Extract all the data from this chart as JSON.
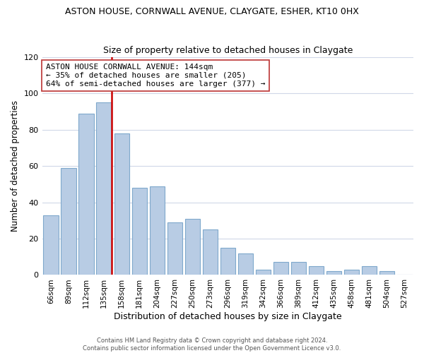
{
  "title": "ASTON HOUSE, CORNWALL AVENUE, CLAYGATE, ESHER, KT10 0HX",
  "subtitle": "Size of property relative to detached houses in Claygate",
  "xlabel": "Distribution of detached houses by size in Claygate",
  "ylabel": "Number of detached properties",
  "categories": [
    "66sqm",
    "89sqm",
    "112sqm",
    "135sqm",
    "158sqm",
    "181sqm",
    "204sqm",
    "227sqm",
    "250sqm",
    "273sqm",
    "296sqm",
    "319sqm",
    "342sqm",
    "366sqm",
    "389sqm",
    "412sqm",
    "435sqm",
    "458sqm",
    "481sqm",
    "504sqm",
    "527sqm"
  ],
  "values": [
    33,
    59,
    89,
    95,
    78,
    48,
    49,
    29,
    31,
    25,
    15,
    12,
    3,
    7,
    7,
    5,
    2,
    3,
    5,
    2,
    0
  ],
  "bar_color": "#b8cce4",
  "bar_edge_color": "#7fa8cc",
  "vline_x_index": 3,
  "vline_color": "#cc0000",
  "annotation_line1": "ASTON HOUSE CORNWALL AVENUE: 144sqm",
  "annotation_line2": "← 35% of detached houses are smaller (205)",
  "annotation_line3": "64% of semi-detached houses are larger (377) →",
  "annotation_box_color": "#ffffff",
  "annotation_box_edge": "#bb3333",
  "ylim": [
    0,
    120
  ],
  "yticks": [
    0,
    20,
    40,
    60,
    80,
    100,
    120
  ],
  "footer_line1": "Contains HM Land Registry data © Crown copyright and database right 2024.",
  "footer_line2": "Contains public sector information licensed under the Open Government Licence v3.0.",
  "background_color": "#ffffff",
  "grid_color": "#d0d8e8"
}
